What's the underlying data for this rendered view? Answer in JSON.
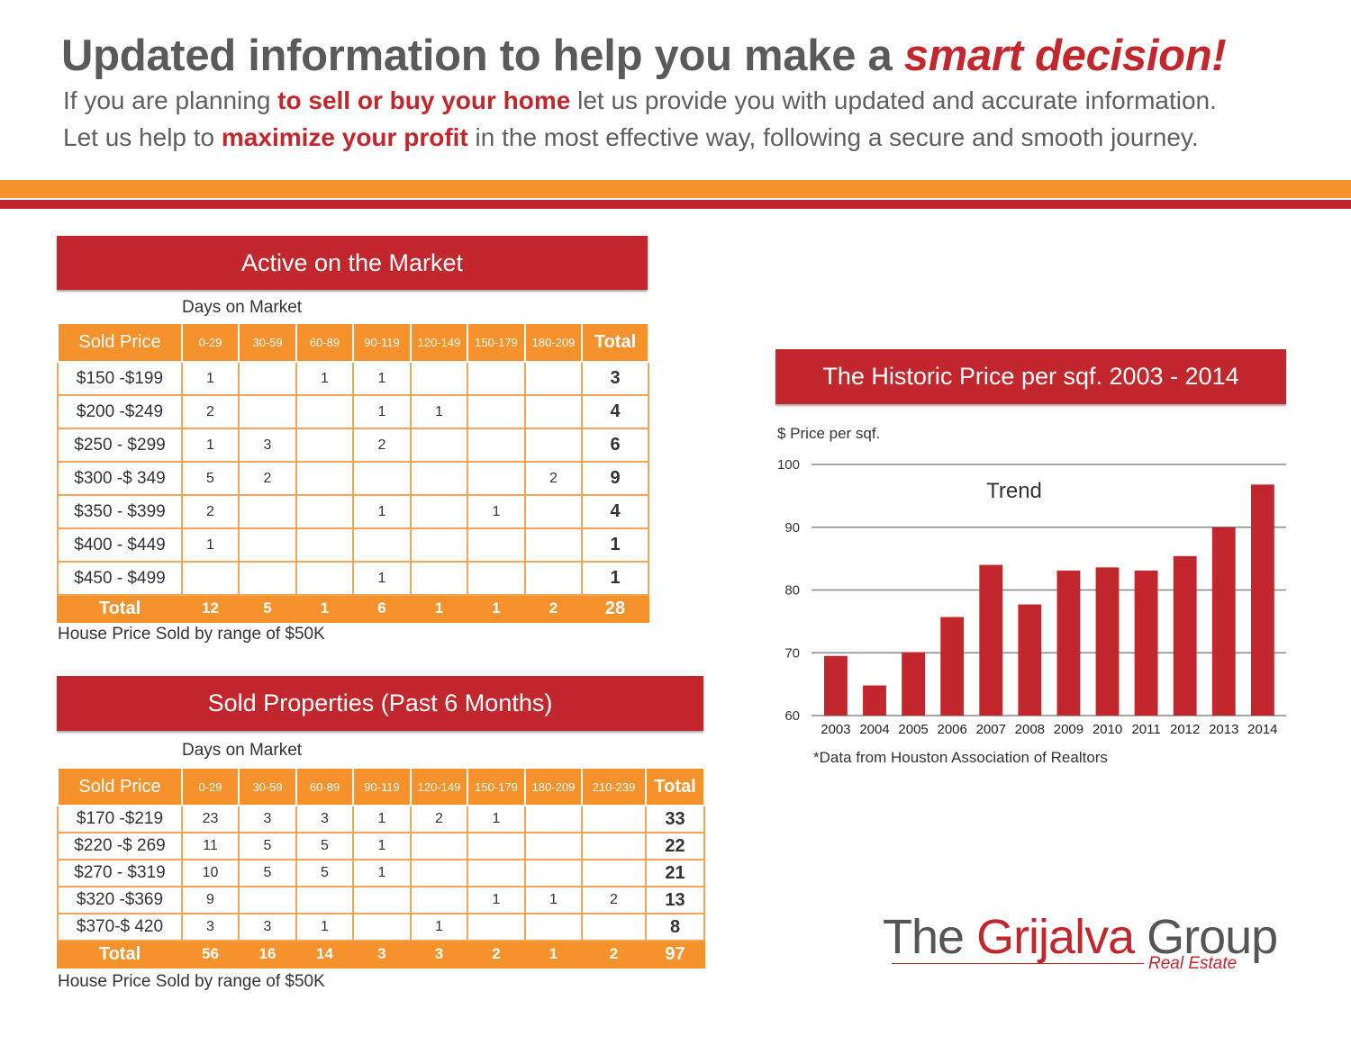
{
  "headline": {
    "main": "Updated information to help you make a ",
    "accent": "smart decision!"
  },
  "intro": {
    "line1_a": "If you are planning ",
    "line1_hl": "to sell or buy your home",
    "line1_b": " let us provide you with updated and accurate information.",
    "line2_a": "Let us help to ",
    "line2_hl": "maximize your profit",
    "line2_b": " in the most effective way, following a secure and smooth journey."
  },
  "colors": {
    "brand_red": "#c1272d",
    "brand_orange": "#f5922b"
  },
  "active": {
    "title": "Active on the Market",
    "days_label": "Days on Market",
    "headers": [
      "Sold Price",
      "0-29",
      "30-59",
      "60-89",
      "90-119",
      "120-149",
      "150-179",
      "180-209",
      "Total"
    ],
    "rows": [
      [
        "$150 -$199",
        "1",
        "",
        "1",
        "1",
        "",
        "",
        "",
        "3"
      ],
      [
        "$200 -$249",
        "2",
        "",
        "",
        "1",
        "1",
        "",
        "",
        "4"
      ],
      [
        "$250 - $299",
        "1",
        "3",
        "",
        "2",
        "",
        "",
        "",
        "6"
      ],
      [
        "$300 -$ 349",
        "5",
        "2",
        "",
        "",
        "",
        "",
        "2",
        "9"
      ],
      [
        "$350 - $399",
        "2",
        "",
        "",
        "1",
        "",
        "1",
        "",
        "4"
      ],
      [
        "$400 - $449",
        "1",
        "",
        "",
        "",
        "",
        "",
        "",
        "1"
      ],
      [
        "$450 - $499",
        "",
        "",
        "",
        "1",
        "",
        "",
        "",
        "1"
      ]
    ],
    "totals": [
      "Total",
      "12",
      "5",
      "1",
      "6",
      "1",
      "1",
      "2",
      "28"
    ],
    "note": "House Price Sold by range of $50K"
  },
  "sold": {
    "title": "Sold Properties (Past 6 Months)",
    "days_label": "Days on Market",
    "headers": [
      "Sold Price",
      "0-29",
      "30-59",
      "60-89",
      "90-119",
      "120-149",
      "150-179",
      "180-209",
      "210-239",
      "Total"
    ],
    "rows": [
      [
        "$170 -$219",
        "23",
        "3",
        "3",
        "1",
        "2",
        "1",
        "",
        "",
        "33"
      ],
      [
        "$220 -$ 269",
        "11",
        "5",
        "5",
        "1",
        "",
        "",
        "",
        "",
        "22"
      ],
      [
        "$270 - $319",
        "10",
        "5",
        "5",
        "1",
        "",
        "",
        "",
        "",
        "21"
      ],
      [
        "$320 -$369",
        "9",
        "",
        "",
        "",
        "",
        "1",
        "1",
        "2",
        "13"
      ],
      [
        "$370-$ 420",
        "3",
        "3",
        "1",
        "",
        "1",
        "",
        "",
        "",
        "8"
      ]
    ],
    "totals": [
      "Total",
      "56",
      "16",
      "14",
      "3",
      "3",
      "2",
      "1",
      "2",
      "97"
    ],
    "note": "House Price Sold by range of $50K"
  },
  "chart_data": {
    "type": "bar",
    "title": "The Historic Price per sqf. 2003 - 2014",
    "ylabel": "$ Price per sqf.",
    "annotation": "Trend",
    "categories": [
      "2003",
      "2004",
      "2005",
      "2006",
      "2007",
      "2008",
      "2009",
      "2010",
      "2011",
      "2012",
      "2013",
      "2014"
    ],
    "values": [
      69.5,
      64.8,
      70.1,
      75.7,
      84.0,
      77.7,
      83.1,
      83.6,
      83.1,
      85.4,
      90.0,
      96.8
    ],
    "ylim": [
      60,
      100
    ],
    "yticks": [
      60,
      70,
      80,
      90,
      100
    ],
    "grid": true,
    "bar_color": "#c1272d",
    "source": "*Data from Houston Association of Realtors"
  },
  "logo": {
    "part1": "The ",
    "part2": "Grijalva",
    "part3": " ",
    "part4": "Group",
    "sub": "Real Estate"
  }
}
